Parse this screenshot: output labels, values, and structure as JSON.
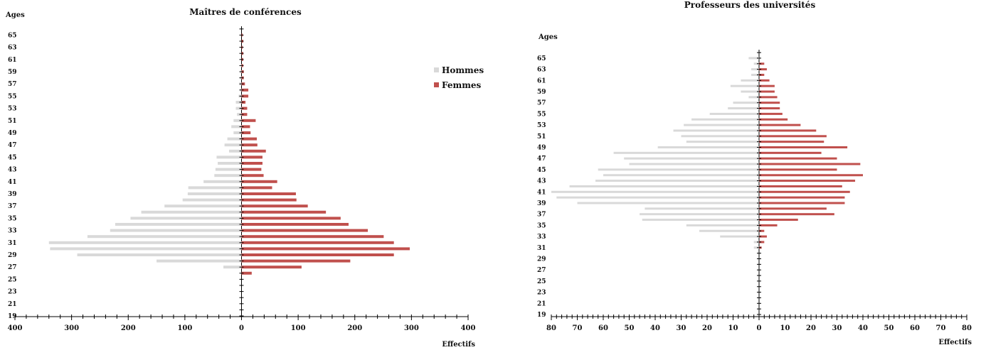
{
  "chart_data": [
    {
      "type": "bar",
      "orientation": "horizontal-population-pyramid",
      "title": "Maîtres de conférences",
      "ylabel": "Ages",
      "xlabel": "Effectifs",
      "x_ticks": [
        "400",
        "300",
        "200",
        "100",
        "0",
        "100",
        "200",
        "300",
        "400"
      ],
      "xlim": [
        -400,
        400
      ],
      "age_ticks": [
        "65",
        "63",
        "61",
        "59",
        "57",
        "55",
        "53",
        "51",
        "49",
        "47",
        "45",
        "43",
        "41",
        "39",
        "37",
        "35",
        "33",
        "31",
        "29",
        "27",
        "25",
        "23",
        "21",
        "19"
      ],
      "ages": [
        66,
        65,
        64,
        63,
        62,
        61,
        60,
        59,
        58,
        57,
        56,
        55,
        54,
        53,
        52,
        51,
        50,
        49,
        48,
        47,
        46,
        45,
        44,
        43,
        42,
        41,
        40,
        39,
        38,
        37,
        36,
        35,
        34,
        33,
        32,
        31,
        30,
        29,
        28,
        27,
        26,
        25,
        24,
        23,
        22,
        21,
        20,
        19
      ],
      "legend": {
        "position": "top-right",
        "entries": [
          "Hommes",
          "Femmes"
        ]
      },
      "series": [
        {
          "name": "Hommes",
          "color": "#d9d9d9",
          "values": [
            0,
            0,
            0,
            0,
            0,
            0,
            1,
            2,
            3,
            4,
            3,
            5,
            10,
            10,
            8,
            14,
            18,
            14,
            25,
            30,
            22,
            44,
            42,
            46,
            48,
            67,
            94,
            95,
            104,
            136,
            177,
            196,
            223,
            232,
            272,
            340,
            338,
            290,
            150,
            32,
            0,
            0,
            0,
            0,
            0,
            0,
            0,
            0
          ]
        },
        {
          "name": "Femmes",
          "color": "#c0504d",
          "values": [
            0,
            2,
            3,
            2,
            3,
            3,
            3,
            4,
            4,
            6,
            12,
            12,
            7,
            10,
            10,
            25,
            15,
            16,
            27,
            28,
            43,
            37,
            37,
            35,
            39,
            63,
            54,
            96,
            97,
            117,
            149,
            175,
            189,
            223,
            251,
            269,
            297,
            269,
            192,
            106,
            18,
            0,
            0,
            0,
            0,
            0,
            0,
            0
          ]
        }
      ]
    },
    {
      "type": "bar",
      "orientation": "horizontal-population-pyramid",
      "title": "Professeurs des universités",
      "ylabel": "Ages",
      "xlabel": "Effectifs",
      "x_ticks": [
        "80",
        "70",
        "60",
        "50",
        "40",
        "30",
        "20",
        "10",
        "0",
        "10",
        "20",
        "30",
        "40",
        "50",
        "60",
        "70",
        "80"
      ],
      "xlim": [
        -80,
        80
      ],
      "age_ticks": [
        "65",
        "63",
        "61",
        "59",
        "57",
        "55",
        "53",
        "51",
        "49",
        "47",
        "45",
        "43",
        "41",
        "39",
        "37",
        "35",
        "33",
        "31",
        "29",
        "27",
        "25",
        "23",
        "21",
        "19"
      ],
      "ages": [
        66,
        65,
        64,
        63,
        62,
        61,
        60,
        59,
        58,
        57,
        56,
        55,
        54,
        53,
        52,
        51,
        50,
        49,
        48,
        47,
        46,
        45,
        44,
        43,
        42,
        41,
        40,
        39,
        38,
        37,
        36,
        35,
        34,
        33,
        32,
        31,
        30,
        29,
        28,
        27,
        26,
        25,
        24,
        23,
        22,
        21,
        20,
        19
      ],
      "series": [
        {
          "name": "Hommes",
          "color": "#d9d9d9",
          "values": [
            0,
            4,
            2,
            3,
            3,
            7,
            11,
            7,
            4,
            10,
            12,
            19,
            26,
            29,
            33,
            30,
            28,
            39,
            56,
            52,
            50,
            62,
            60,
            63,
            73,
            80,
            78,
            70,
            44,
            46,
            45,
            28,
            23,
            15,
            2,
            2,
            0,
            0,
            0,
            0,
            0,
            0,
            0,
            0,
            0,
            0,
            0,
            0
          ]
        },
        {
          "name": "Femmes",
          "color": "#c0504d",
          "values": [
            0,
            0,
            2,
            3,
            2,
            4,
            6,
            6,
            7,
            8,
            8,
            9,
            11,
            16,
            22,
            26,
            25,
            34,
            24,
            30,
            39,
            30,
            40,
            37,
            32,
            35,
            33,
            33,
            26,
            29,
            15,
            7,
            2,
            3,
            2,
            1,
            0,
            0,
            0,
            0,
            0,
            0,
            0,
            0,
            0,
            0,
            0,
            0
          ]
        }
      ]
    }
  ]
}
